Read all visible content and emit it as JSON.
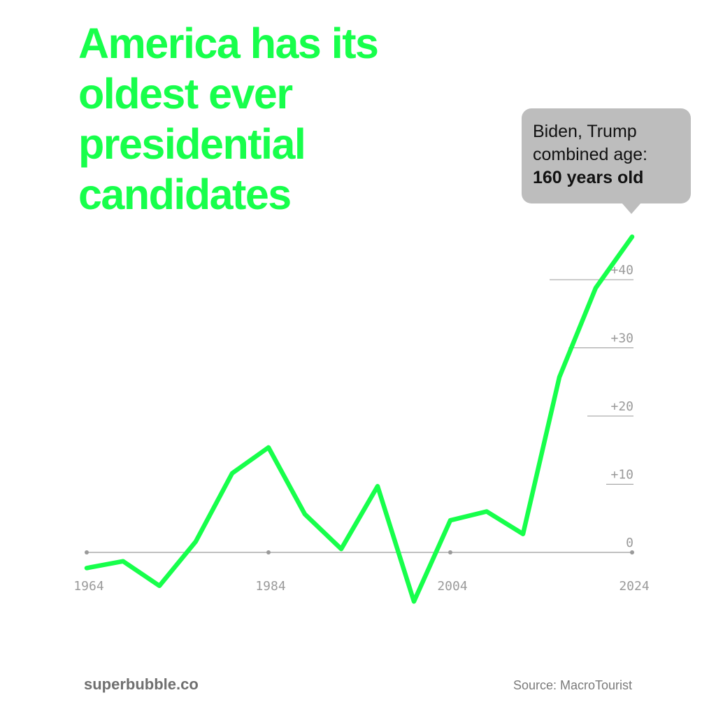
{
  "title": "America has its oldest ever presidential candidates",
  "callout": {
    "line1": "Biden, Trump",
    "line2": "combined age:",
    "line3": "160 years old"
  },
  "footer": {
    "site": "superbubble.co",
    "source": "Source: MacroTourist"
  },
  "colors": {
    "accent": "#17ff4b",
    "axis": "#9a9a9a",
    "callout_bg": "#bdbdbd"
  },
  "chart_data": {
    "type": "line",
    "title": "America has its oldest ever presidential candidates",
    "xlabel": "",
    "ylabel": "",
    "x_ticks": [
      "1964",
      "1984",
      "2004",
      "2024"
    ],
    "y_ticks": [
      "0",
      "+10",
      "+20",
      "+30",
      "+40"
    ],
    "xlim": [
      1964,
      2024
    ],
    "ylim": [
      -10,
      50
    ],
    "grid": false,
    "series": [
      {
        "x": [
          1964,
          1968,
          1972,
          1976,
          1980,
          1984,
          1988,
          1992,
          1996,
          2000,
          2004,
          2008,
          2012,
          2016,
          2020,
          2024
        ],
        "values": [
          -2.3,
          -1.3,
          -4.9,
          1.6,
          11.6,
          15.4,
          5.6,
          0.5,
          9.7,
          -7.2,
          4.7,
          6.0,
          2.7,
          25.7,
          38.8,
          46.3
        ]
      }
    ]
  }
}
